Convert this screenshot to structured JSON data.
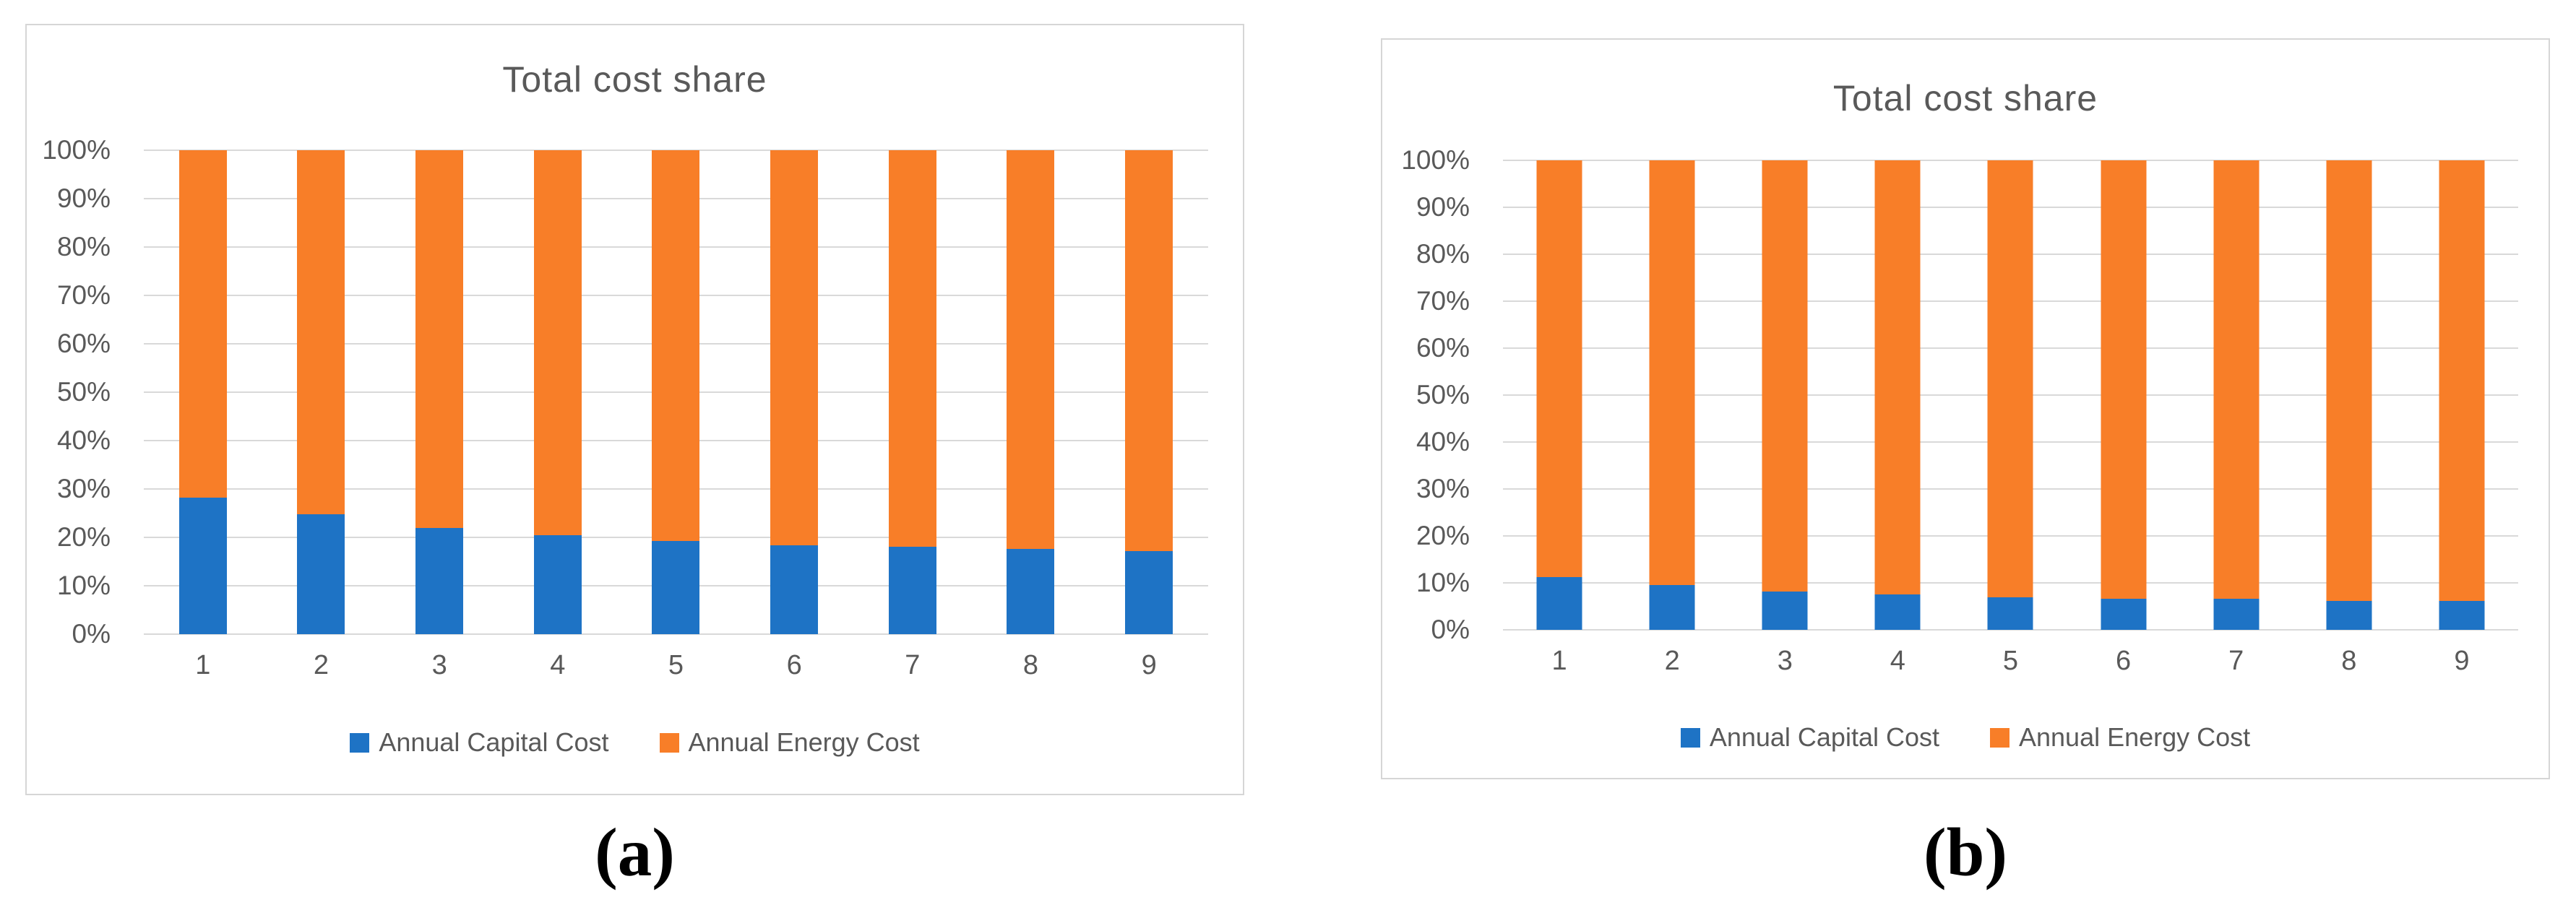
{
  "styles": {
    "background": "#ffffff",
    "panel_border_color": "#d6d6d6",
    "grid_color": "#d9d9d9",
    "text_color": "#595959",
    "caption_color": "#000000",
    "capital_blue": "#1e73c5",
    "energy_orange": "#f87e28"
  },
  "chart_data": [
    {
      "type": "bar",
      "subtype": "stacked-100-percent",
      "panel_label": "(a)",
      "title": "Total cost share",
      "categories": [
        "1",
        "2",
        "3",
        "4",
        "5",
        "6",
        "7",
        "8",
        "9"
      ],
      "series": [
        {
          "name": "Annual Capital Cost",
          "color": "#1e73c5",
          "values": [
            28.2,
            24.8,
            21.9,
            20.5,
            19.2,
            18.3,
            18.0,
            17.6,
            17.2
          ]
        },
        {
          "name": "Annual Energy Cost",
          "color": "#f87e28",
          "values": [
            71.8,
            75.2,
            78.1,
            79.5,
            80.8,
            81.7,
            82.0,
            82.4,
            82.8
          ]
        }
      ],
      "xlabel": "",
      "ylabel": "",
      "y_axis": {
        "min": 0,
        "max": 100,
        "step": 10,
        "tick_suffix": "%"
      },
      "y_tick_labels": [
        "100%",
        "90%",
        "80%",
        "70%",
        "60%",
        "50%",
        "40%",
        "30%",
        "20%",
        "10%",
        "0%"
      ],
      "grid": true,
      "legend_position": "bottom"
    },
    {
      "type": "bar",
      "subtype": "stacked-100-percent",
      "panel_label": "(b)",
      "title": "Total cost share",
      "categories": [
        "1",
        "2",
        "3",
        "4",
        "5",
        "6",
        "7",
        "8",
        "9"
      ],
      "series": [
        {
          "name": "Annual Capital Cost",
          "color": "#1e73c5",
          "values": [
            11.2,
            9.5,
            8.2,
            7.5,
            6.9,
            6.6,
            6.6,
            6.2,
            6.2
          ]
        },
        {
          "name": "Annual Energy Cost",
          "color": "#f87e28",
          "values": [
            88.8,
            90.5,
            91.8,
            92.5,
            93.1,
            93.4,
            93.4,
            93.8,
            93.8
          ]
        }
      ],
      "xlabel": "",
      "ylabel": "",
      "y_axis": {
        "min": 0,
        "max": 100,
        "step": 10,
        "tick_suffix": "%"
      },
      "y_tick_labels": [
        "100%",
        "90%",
        "80%",
        "70%",
        "60%",
        "50%",
        "40%",
        "30%",
        "20%",
        "10%",
        "0%"
      ],
      "grid": true,
      "legend_position": "bottom"
    }
  ]
}
